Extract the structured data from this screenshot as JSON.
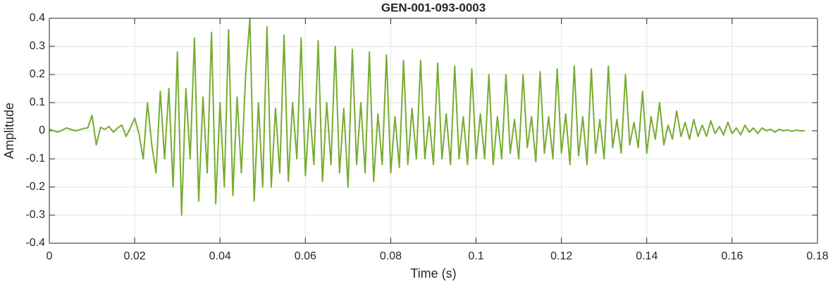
{
  "chart_data": {
    "type": "line",
    "title": "GEN-001-093-0003",
    "xlabel": "Time (s)",
    "ylabel": "Amplitude",
    "x": [
      0,
      0.001,
      0.002,
      0.003,
      0.004,
      0.005,
      0.006,
      0.007,
      0.008,
      0.009,
      0.01,
      0.011,
      0.012,
      0.013,
      0.014,
      0.015,
      0.016,
      0.017,
      0.018,
      0.019,
      0.02,
      0.021,
      0.022,
      0.023,
      0.024,
      0.025,
      0.026,
      0.027,
      0.028,
      0.029,
      0.03,
      0.031,
      0.032,
      0.033,
      0.034,
      0.035,
      0.036,
      0.037,
      0.038,
      0.039,
      0.04,
      0.041,
      0.042,
      0.043,
      0.044,
      0.045,
      0.046,
      0.047,
      0.048,
      0.049,
      0.05,
      0.051,
      0.052,
      0.053,
      0.054,
      0.055,
      0.056,
      0.057,
      0.058,
      0.059,
      0.06,
      0.061,
      0.062,
      0.063,
      0.064,
      0.065,
      0.066,
      0.067,
      0.068,
      0.069,
      0.07,
      0.071,
      0.072,
      0.073,
      0.074,
      0.075,
      0.076,
      0.077,
      0.078,
      0.079,
      0.08,
      0.081,
      0.082,
      0.083,
      0.084,
      0.085,
      0.086,
      0.087,
      0.088,
      0.089,
      0.09,
      0.091,
      0.092,
      0.093,
      0.094,
      0.095,
      0.096,
      0.097,
      0.098,
      0.099,
      0.1,
      0.101,
      0.102,
      0.103,
      0.104,
      0.105,
      0.106,
      0.107,
      0.108,
      0.109,
      0.11,
      0.111,
      0.112,
      0.113,
      0.114,
      0.115,
      0.116,
      0.117,
      0.118,
      0.119,
      0.12,
      0.121,
      0.122,
      0.123,
      0.124,
      0.125,
      0.126,
      0.127,
      0.128,
      0.129,
      0.13,
      0.131,
      0.132,
      0.133,
      0.134,
      0.135,
      0.136,
      0.137,
      0.138,
      0.139,
      0.14,
      0.141,
      0.142,
      0.143,
      0.144,
      0.145,
      0.146,
      0.147,
      0.148,
      0.149,
      0.15,
      0.151,
      0.152,
      0.153,
      0.154,
      0.155,
      0.156,
      0.157,
      0.158,
      0.159,
      0.16,
      0.161,
      0.162,
      0.163,
      0.164,
      0.165,
      0.166,
      0.167,
      0.168,
      0.169,
      0.17,
      0.171,
      0.172,
      0.173,
      0.174,
      0.175,
      0.176,
      0.177
    ],
    "values": [
      0.005,
      0,
      -0.005,
      0.002,
      0.01,
      0.005,
      0,
      0.003,
      0.008,
      0.01,
      0.055,
      -0.05,
      0.012,
      0.005,
      0.015,
      -0.005,
      0.01,
      0.02,
      -0.02,
      0.01,
      0.045,
      -0.01,
      -0.1,
      0.1,
      -0.05,
      -0.15,
      0.14,
      -0.1,
      0.15,
      -0.2,
      0.28,
      -0.3,
      0.15,
      -0.1,
      0.33,
      -0.25,
      0.12,
      -0.15,
      0.35,
      -0.26,
      0.1,
      -0.2,
      0.36,
      -0.23,
      0.12,
      -0.15,
      0.2,
      0.4,
      -0.25,
      0.1,
      -0.2,
      0.37,
      -0.2,
      0.08,
      -0.15,
      0.34,
      -0.18,
      0.1,
      -0.1,
      0.33,
      -0.16,
      0.08,
      -0.12,
      0.32,
      -0.18,
      0.1,
      -0.12,
      0.3,
      -0.15,
      0.08,
      -0.2,
      0.29,
      -0.12,
      0.1,
      -0.15,
      0.28,
      -0.18,
      0.06,
      -0.12,
      0.27,
      -0.15,
      0.05,
      -0.13,
      0.25,
      -0.12,
      0.08,
      -0.1,
      0.25,
      -0.1,
      0.05,
      -0.12,
      0.24,
      -0.1,
      0.06,
      -0.12,
      0.23,
      -0.1,
      0.05,
      -0.12,
      0.22,
      -0.1,
      0.06,
      -0.1,
      0.2,
      -0.12,
      0.05,
      -0.1,
      0.2,
      -0.08,
      0.04,
      -0.1,
      0.2,
      -0.06,
      0.05,
      -0.11,
      0.21,
      -0.08,
      0.05,
      -0.1,
      0.22,
      -0.08,
      0.06,
      -0.12,
      0.23,
      -0.09,
      0.05,
      -0.12,
      0.22,
      -0.08,
      0.04,
      -0.1,
      0.23,
      -0.06,
      0.04,
      -0.08,
      0.2,
      -0.05,
      0.03,
      -0.06,
      0.14,
      -0.08,
      0.05,
      -0.03,
      0.1,
      -0.05,
      0.02,
      -0.03,
      0.07,
      -0.02,
      0.03,
      -0.03,
      0.04,
      -0.02,
      0.02,
      -0.02,
      0.035,
      -0.01,
      0.015,
      -0.015,
      0.03,
      -0.01,
      0.01,
      -0.015,
      0.02,
      -0.005,
      0.01,
      -0.01,
      0.01,
      0,
      0.005,
      -0.005,
      0.005,
      0,
      0.003,
      -0.002,
      0.002,
      0,
      0
    ],
    "color": "#77ac30",
    "xlim": [
      0,
      0.18
    ],
    "xticks": [
      0,
      0.02,
      0.04,
      0.06,
      0.08,
      0.1,
      0.12,
      0.14,
      0.16,
      0.18
    ],
    "ylim": [
      -0.4,
      0.4
    ],
    "yticks": [
      -0.4,
      -0.3,
      -0.2,
      -0.1,
      0,
      0.1,
      0.2,
      0.3,
      0.4
    ],
    "grid": true
  }
}
